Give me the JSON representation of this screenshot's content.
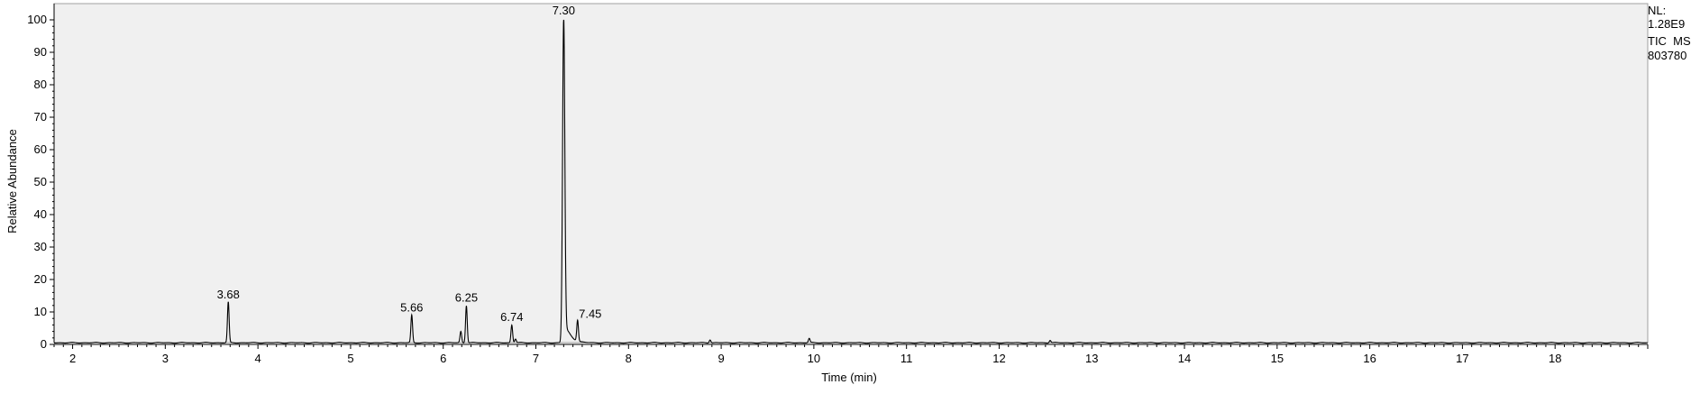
{
  "info": {
    "nl_label": "NL:",
    "nl_value": "1.28E9",
    "trace_label": "TIC  MS",
    "file_id": "803780"
  },
  "chart_data": {
    "type": "line",
    "title": "",
    "xlabel": "Time (min)",
    "ylabel": "Relative Abundance",
    "xlim": [
      1.8,
      19.0
    ],
    "ylim": [
      0,
      100
    ],
    "x_ticks": [
      2,
      3,
      4,
      5,
      6,
      7,
      8,
      9,
      10,
      11,
      12,
      13,
      14,
      15,
      16,
      17,
      18
    ],
    "y_ticks": [
      0,
      10,
      20,
      30,
      40,
      50,
      60,
      70,
      80,
      90,
      100
    ],
    "grid": false,
    "background": "#f0f0f0",
    "line_color": "#000000",
    "peaks": [
      {
        "label": "3.68",
        "x": 3.68,
        "y": 12.5
      },
      {
        "label": "5.66",
        "x": 5.66,
        "y": 8.5
      },
      {
        "label": "6.25",
        "x": 6.25,
        "y": 11.5
      },
      {
        "label": "6.74",
        "x": 6.74,
        "y": 5.5
      },
      {
        "label": "7.30",
        "x": 7.3,
        "y": 100
      },
      {
        "label": "7.45",
        "x": 7.45,
        "y": 6.5
      }
    ],
    "minor_peaks": [
      {
        "x": 6.19,
        "y": 3.5
      },
      {
        "x": 6.78,
        "y": 1.2
      },
      {
        "x": 8.88,
        "y": 1.0
      },
      {
        "x": 9.95,
        "y": 1.3
      },
      {
        "x": 12.55,
        "y": 0.8
      }
    ],
    "baseline": 0.5
  }
}
